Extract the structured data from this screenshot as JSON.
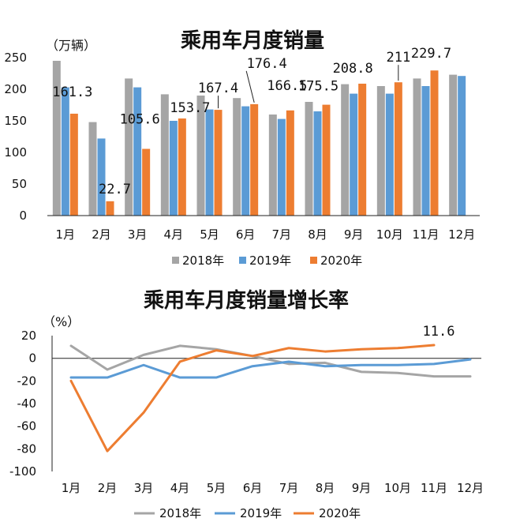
{
  "chart_data": [
    {
      "type": "bar",
      "title": "乘用车月度销量",
      "unit": "（万辆）",
      "categories": [
        "1月",
        "2月",
        "3月",
        "4月",
        "5月",
        "6月",
        "7月",
        "8月",
        "9月",
        "10月",
        "11月",
        "12月"
      ],
      "ylim": [
        0,
        250
      ],
      "yticks": [
        0,
        50,
        100,
        150,
        200,
        250
      ],
      "grid": false,
      "legend_position": "bottom",
      "series": [
        {
          "name": "2018年",
          "color": "#a5a5a5",
          "values": [
            245,
            148,
            217,
            192,
            190,
            186,
            160,
            180,
            208,
            205,
            217,
            223
          ]
        },
        {
          "name": "2019年",
          "color": "#5b9bd5",
          "values": [
            203,
            122,
            203,
            150,
            168,
            173,
            153,
            165,
            193,
            193,
            205,
            221
          ]
        },
        {
          "name": "2020年",
          "color": "#ed7d31",
          "values": [
            161.3,
            22.7,
            105.6,
            153.7,
            167.4,
            176.4,
            166.5,
            175.5,
            208.8,
            211,
            229.7,
            null
          ]
        }
      ],
      "data_labels": [
        {
          "category": "1月",
          "text": "161.3"
        },
        {
          "category": "2月",
          "text": "22.7"
        },
        {
          "category": "3月",
          "text": "105.6"
        },
        {
          "category": "4月",
          "text": "153.7"
        },
        {
          "category": "5月",
          "text": "167.4"
        },
        {
          "category": "6月",
          "text": "176.4"
        },
        {
          "category": "7月",
          "text": "166.5"
        },
        {
          "category": "8月",
          "text": "175.5"
        },
        {
          "category": "9月",
          "text": "208.8"
        },
        {
          "category": "10月",
          "text": "211"
        },
        {
          "category": "11月",
          "text": "229.7"
        }
      ]
    },
    {
      "type": "line",
      "title": "乘用车月度销量增长率",
      "unit": "（%）",
      "categories": [
        "1月",
        "2月",
        "3月",
        "4月",
        "5月",
        "6月",
        "7月",
        "8月",
        "9月",
        "10月",
        "11月",
        "12月"
      ],
      "ylim": [
        -100,
        20
      ],
      "yticks": [
        20,
        0,
        -20,
        -40,
        -60,
        -80,
        -100
      ],
      "grid": false,
      "legend_position": "bottom",
      "series": [
        {
          "name": "2018年",
          "color": "#a5a5a5",
          "values": [
            11,
            -10,
            3,
            11,
            8,
            2,
            -5,
            -4,
            -12,
            -13,
            -16,
            -16
          ]
        },
        {
          "name": "2019年",
          "color": "#5b9bd5",
          "values": [
            -17,
            -17,
            -6,
            -17,
            -17,
            -7,
            -3,
            -7,
            -6,
            -6,
            -5,
            -1
          ]
        },
        {
          "name": "2020年",
          "color": "#ed7d31",
          "values": [
            -20,
            -82,
            -48,
            -3,
            7,
            2,
            9,
            6,
            8,
            9,
            11.6,
            null
          ]
        }
      ],
      "data_labels": [
        {
          "category": "11月",
          "text": "11.6"
        }
      ]
    }
  ]
}
